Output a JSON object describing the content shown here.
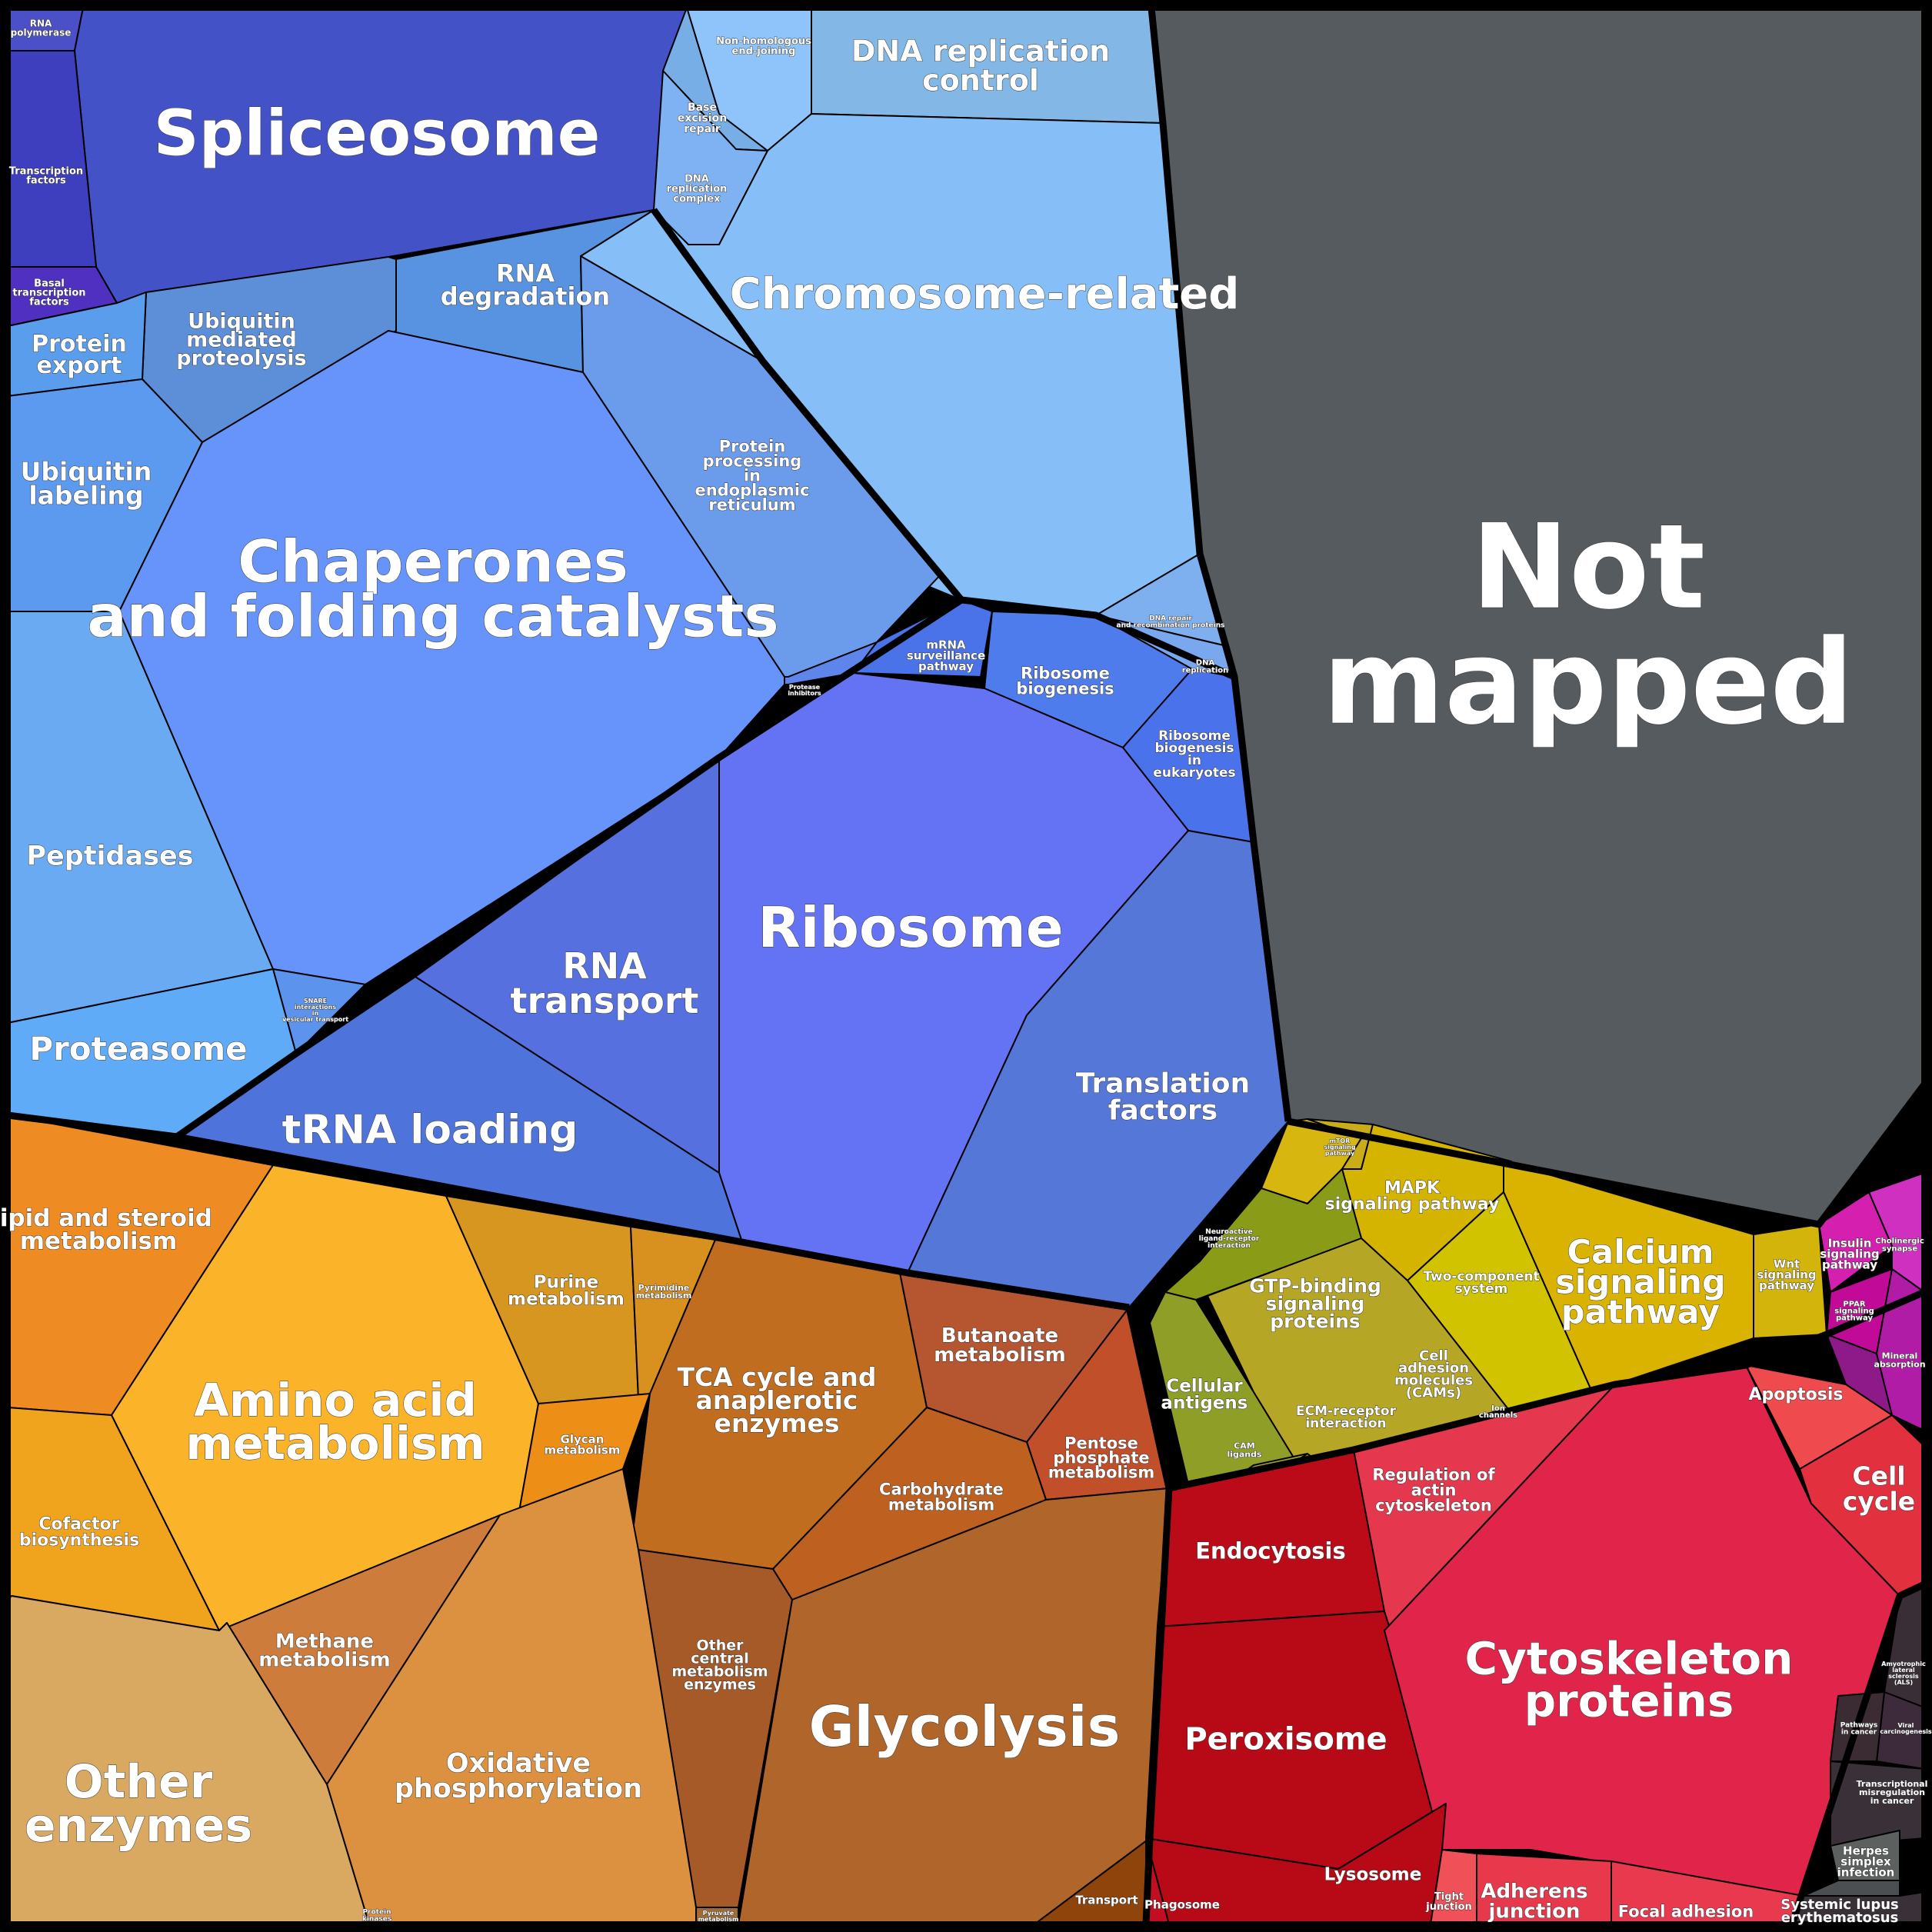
{
  "labels": {
    "rna_polymerase": "RNA polymerase",
    "spliceosome": "Spliceosome",
    "transcription_factors": "Transcription factors",
    "basal_transcription_factors": "Basal transcription factors",
    "nhej": "Non-homologous end-joining",
    "dna_replication_control": "DNA replication control",
    "base_excision_repair": "Base excision repair",
    "dna_replication_complex": "DNA replication complex",
    "chromosome_related": "Chromosome-related",
    "rna_degradation": "RNA degradation",
    "ubiquitin_mediated": "Ubiquitin mediated proteolysis",
    "protein_export": "Protein export",
    "ubiquitin_labeling": "Ubiquitin labeling",
    "protein_processing_er": "Protein processing in endoplasmic reticulum",
    "chaperones": "Chaperones and folding catalysts",
    "mrna_surveillance": "mRNA surveillance pathway",
    "ribosome_biogenesis": "Ribosome biogenesis",
    "ribosome_biogenesis_euk": "Ribosome biogenesis in eukaryotes",
    "dna_repair_recombination": "DNA repair and recombination proteins",
    "dna_replication": "DNA replication",
    "protease_inhibitors": "Protease inhibitors",
    "ribosome": "Ribosome",
    "peptidases": "Peptidases",
    "rna_transport": "RNA transport",
    "translation_factors": "Translation factors",
    "snare": "SNARE interactions in vesicular transport",
    "proteasome": "Proteasome",
    "trna_loading": "tRNA loading",
    "not_mapped": "Not mapped",
    "lipid_steroid": "Lipid and steroid metabolism",
    "purine": "Purine metabolism",
    "pyrimidine": "Pyrimidine metabolism",
    "amino_acid": "Amino acid metabolism",
    "tca": "TCA cycle and anaplerotic enzymes",
    "butanoate": "Butanoate metabolism",
    "glycan": "Glycan metabolism",
    "cofactor": "Cofactor biosynthesis",
    "carbohydrate": "Carbohydrate metabolism",
    "pentose_phosphate": "Pentose phosphate metabolism",
    "methane": "Methane metabolism",
    "other_central": "Other central metabolism enzymes",
    "glycolysis": "Glycolysis",
    "oxidative_phos": "Oxidative phosphorylation",
    "other_enzymes": "Other enzymes",
    "pyruvate": "Pyruvate metabolism",
    "protein_kinases": "Protein kinases",
    "mapk": "MAPK signaling pathway",
    "mtor": "mTOR signaling pathway",
    "calcium": "Calcium signaling pathway",
    "wnt": "Wnt signaling pathway",
    "two_component": "Two-component system",
    "neuroactive": "Neuroactive ligand-receptor interaction",
    "gtp_binding": "GTP-binding signaling proteins",
    "cellular_antigens": "Cellular antigens",
    "cams": "Cell adhesion molecules (CAMs)",
    "ion_channels": "Ion channels",
    "ecm_receptor": "ECM-receptor interaction",
    "cam_ligands": "CAM ligands",
    "insulin": "Insulin signaling pathway",
    "cholinergic": "Cholinergic synapse",
    "ppar": "PPAR signaling pathway",
    "mineral_absorption": "Mineral absorption",
    "apoptosis": "Apoptosis",
    "cell_cycle": "Cell cycle",
    "regulation_actin": "Regulation of actin cytoskeleton",
    "endocytosis": "Endocytosis",
    "peroxisome": "Peroxisome",
    "cytoskeleton": "Cytoskeleton proteins",
    "lysosome": "Lysosome",
    "phagosome": "Phagosome",
    "tight_junction": "Tight junction",
    "adherens": "Adherens junction",
    "focal_adhesion": "Focal adhesion",
    "transport": "Transport",
    "als": "Amyotrophic lateral sclerosis (ALS)",
    "pathways_cancer": "Pathways in cancer",
    "viral_carcinogenesis": "Viral carcinogenesis",
    "transcriptional_misregulation": "Transcriptional misregulation in cancer",
    "herpes": "Herpes simplex infection",
    "sle": "Systemic lupus erythematosus"
  },
  "colors": {
    "background": "#000000",
    "genetic_info": "#4452c8",
    "blue_light": "#86bff8",
    "blue_mid": "#6694fb",
    "metabolism_orange": "#f0931f",
    "metabolism_brown": "#b0652a",
    "signaling_yellow": "#d9b300",
    "signaling_olive": "#8f9e27",
    "cellular_red": "#e0244a",
    "cellular_darkred": "#b80a16",
    "not_mapped": "#565b60",
    "disease_dark": "#3a3138",
    "magenta": "#d51fae"
  }
}
